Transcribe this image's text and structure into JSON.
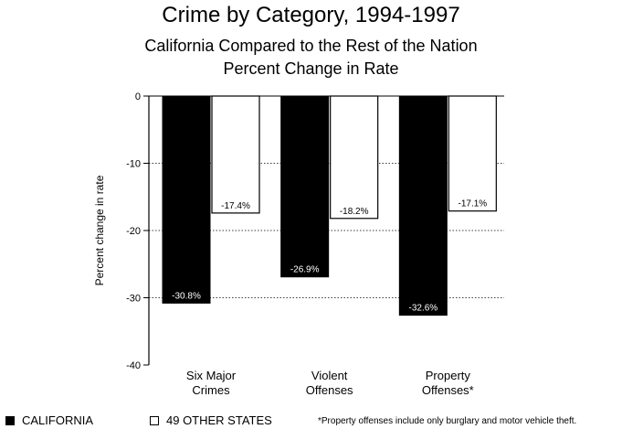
{
  "title": "Crime by Category, 1994-1997",
  "subtitle_line1": "California Compared to the Rest of the Nation",
  "subtitle_line2": "Percent Change in Rate",
  "footnote": "*Property offenses include only burglary and motor vehicle theft.",
  "chart_data": {
    "type": "bar",
    "title": "Crime by Category, 1994-1997",
    "subtitle": "California Compared to the Rest of the Nation / Percent Change in Rate",
    "xlabel": "",
    "ylabel": "Percent change in rate",
    "ylim": [
      -40,
      0
    ],
    "yticks": [
      0,
      -10,
      -20,
      -30,
      -40
    ],
    "ytick_labels": [
      "0",
      "-10",
      "-20",
      "-30",
      "-40"
    ],
    "grid": "horizontal dotted",
    "legend_position": "bottom-left",
    "categories": [
      [
        "Six Major",
        "Crimes"
      ],
      [
        "Violent",
        "Offenses"
      ],
      [
        "Property",
        "Offenses*"
      ]
    ],
    "series": [
      {
        "name": "CALIFORNIA",
        "color": "#000000",
        "values": [
          -30.8,
          -26.9,
          -32.6
        ],
        "labels": [
          "-30.8%",
          "-26.9%",
          "-32.6%"
        ]
      },
      {
        "name": "49 OTHER STATES",
        "color": "#ffffff",
        "values": [
          -17.4,
          -18.2,
          -17.1
        ],
        "labels": [
          "-17.4%",
          "-18.2%",
          "-17.1%"
        ]
      }
    ]
  }
}
